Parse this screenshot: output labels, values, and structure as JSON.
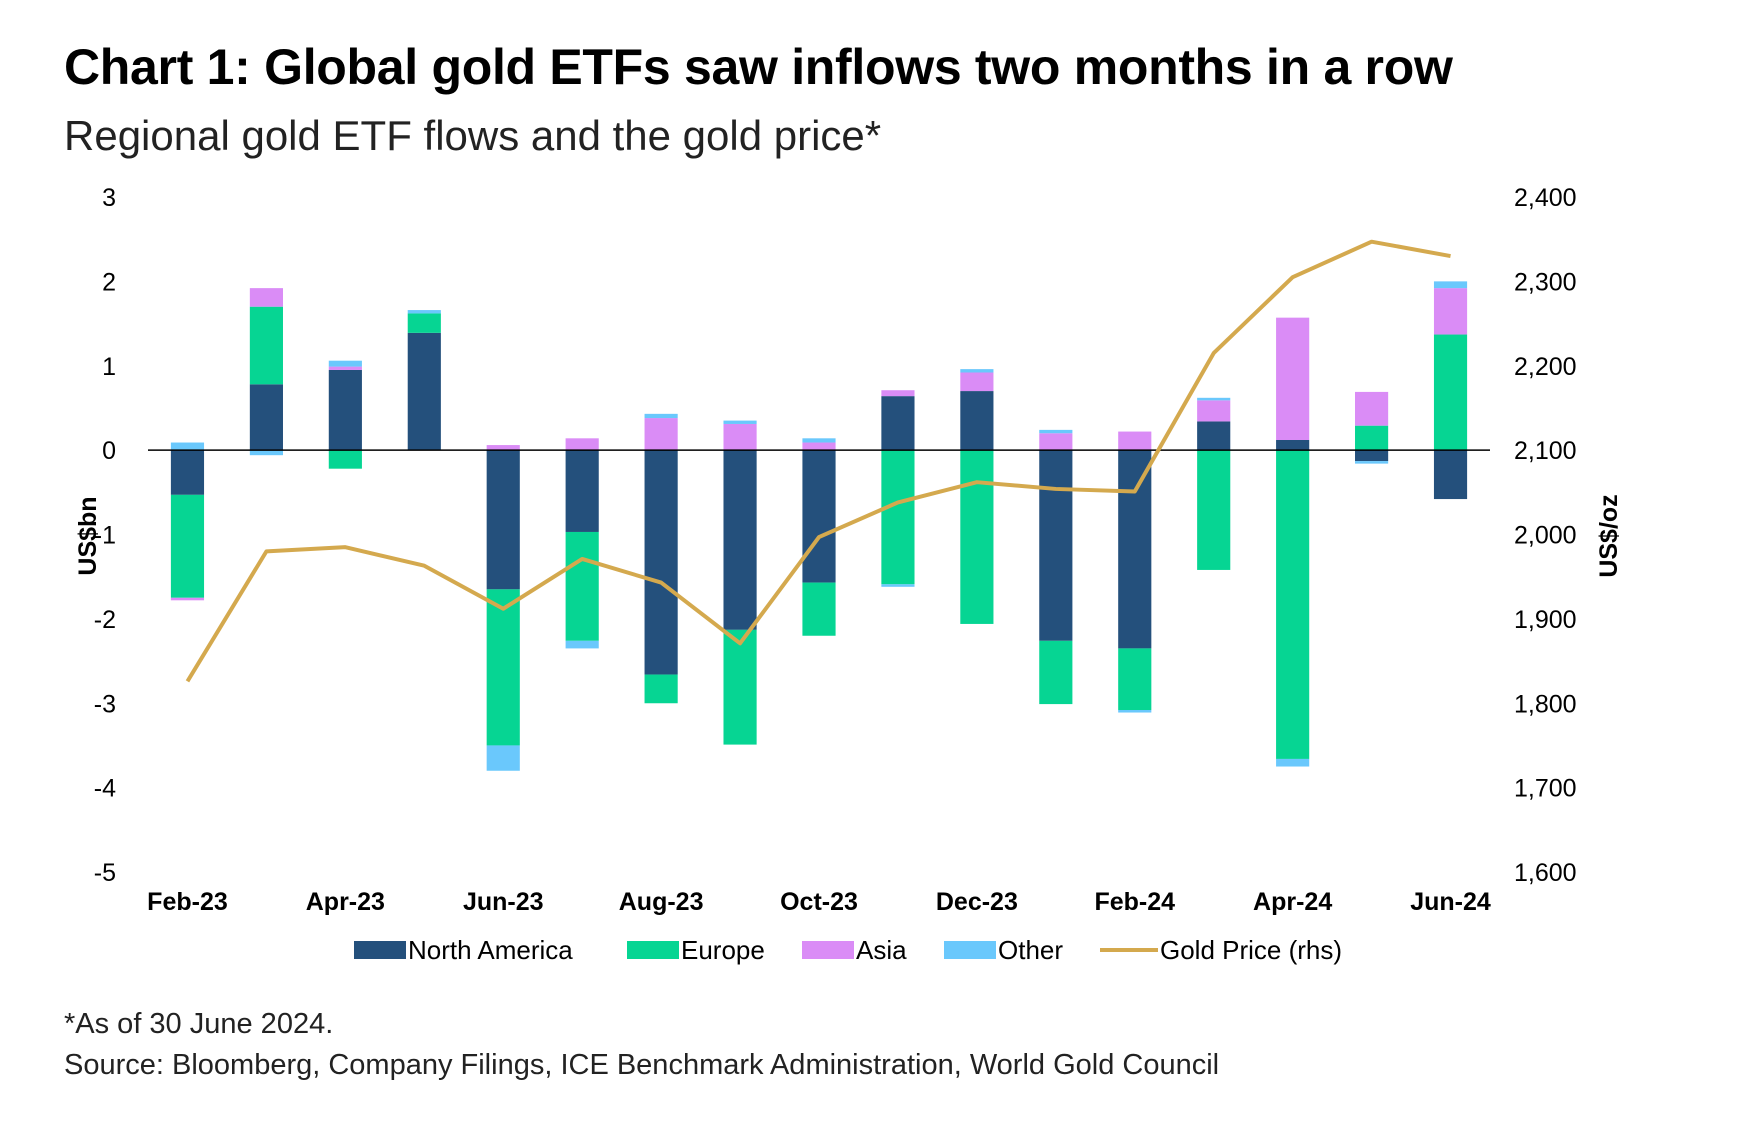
{
  "chart_data": {
    "type": "bar",
    "title": "Chart 1: Global gold ETFs saw inflows two months in a row",
    "subtitle": "Regional gold ETF flows and the gold price*",
    "categories": [
      "Feb-23",
      "Mar-23",
      "Apr-23",
      "May-23",
      "Jun-23",
      "Jul-23",
      "Aug-23",
      "Sep-23",
      "Oct-23",
      "Nov-23",
      "Dec-23",
      "Jan-24",
      "Feb-24",
      "Mar-24",
      "Apr-24",
      "May-24",
      "Jun-24"
    ],
    "x_tick_labels": [
      "Feb-23",
      "Apr-23",
      "Jun-23",
      "Aug-23",
      "Oct-23",
      "Dec-23",
      "Feb-24",
      "Apr-24",
      "Jun-24"
    ],
    "x_tick_indices": [
      0,
      2,
      4,
      6,
      8,
      10,
      12,
      14,
      16
    ],
    "stacked": true,
    "series": [
      {
        "name": "North America",
        "color": "#24507c",
        "values": [
          -0.53,
          0.78,
          0.95,
          1.39,
          -1.65,
          -0.97,
          -2.66,
          -2.13,
          -1.57,
          0.64,
          0.7,
          -2.26,
          -2.35,
          0.34,
          0.12,
          -0.13,
          -0.58
        ]
      },
      {
        "name": "Europe",
        "color": "#06d593",
        "values": [
          -1.22,
          0.92,
          -0.22,
          0.23,
          -1.85,
          -1.29,
          -0.34,
          -1.36,
          -0.63,
          -1.59,
          -2.06,
          -0.75,
          -0.73,
          -1.42,
          -3.66,
          0.29,
          1.37
        ]
      },
      {
        "name": "Asia",
        "color": "#da8cf6",
        "values": [
          -0.03,
          0.22,
          0.04,
          0.0,
          0.06,
          0.14,
          0.38,
          0.31,
          0.09,
          0.07,
          0.22,
          0.2,
          0.22,
          0.25,
          1.45,
          0.4,
          0.55
        ]
      },
      {
        "name": "Other",
        "color": "#6ac8fc",
        "values": [
          0.09,
          -0.06,
          0.07,
          0.04,
          -0.3,
          -0.09,
          0.05,
          0.04,
          0.05,
          -0.03,
          0.04,
          0.04,
          -0.03,
          0.03,
          -0.09,
          -0.03,
          0.08
        ]
      }
    ],
    "line_series": {
      "name": "Gold Price (rhs)",
      "color": "#d4a94e",
      "axis": "right",
      "values": [
        1826,
        1980,
        1985,
        1963,
        1912,
        1971,
        1943,
        1871,
        1997,
        2038,
        2062,
        2054,
        2051,
        2215,
        2305,
        2347,
        2330
      ]
    },
    "ylabel": "US$bn",
    "y2label": "US$/oz",
    "ylim": [
      -5,
      3
    ],
    "y2lim": [
      1600,
      2400
    ],
    "y_ticks": [
      3,
      2,
      1,
      0,
      -1,
      -2,
      -3,
      -4,
      -5
    ],
    "y2_ticks": [
      "2,400",
      "2,300",
      "2,200",
      "2,100",
      "2,000",
      "1,900",
      "1,800",
      "1,700",
      "1,600"
    ],
    "grid": false,
    "legend_position": "bottom"
  },
  "footnote": "*As of 30 June 2024.",
  "source": "Source: Bloomberg, Company Filings, ICE Benchmark Administration, World Gold Council"
}
